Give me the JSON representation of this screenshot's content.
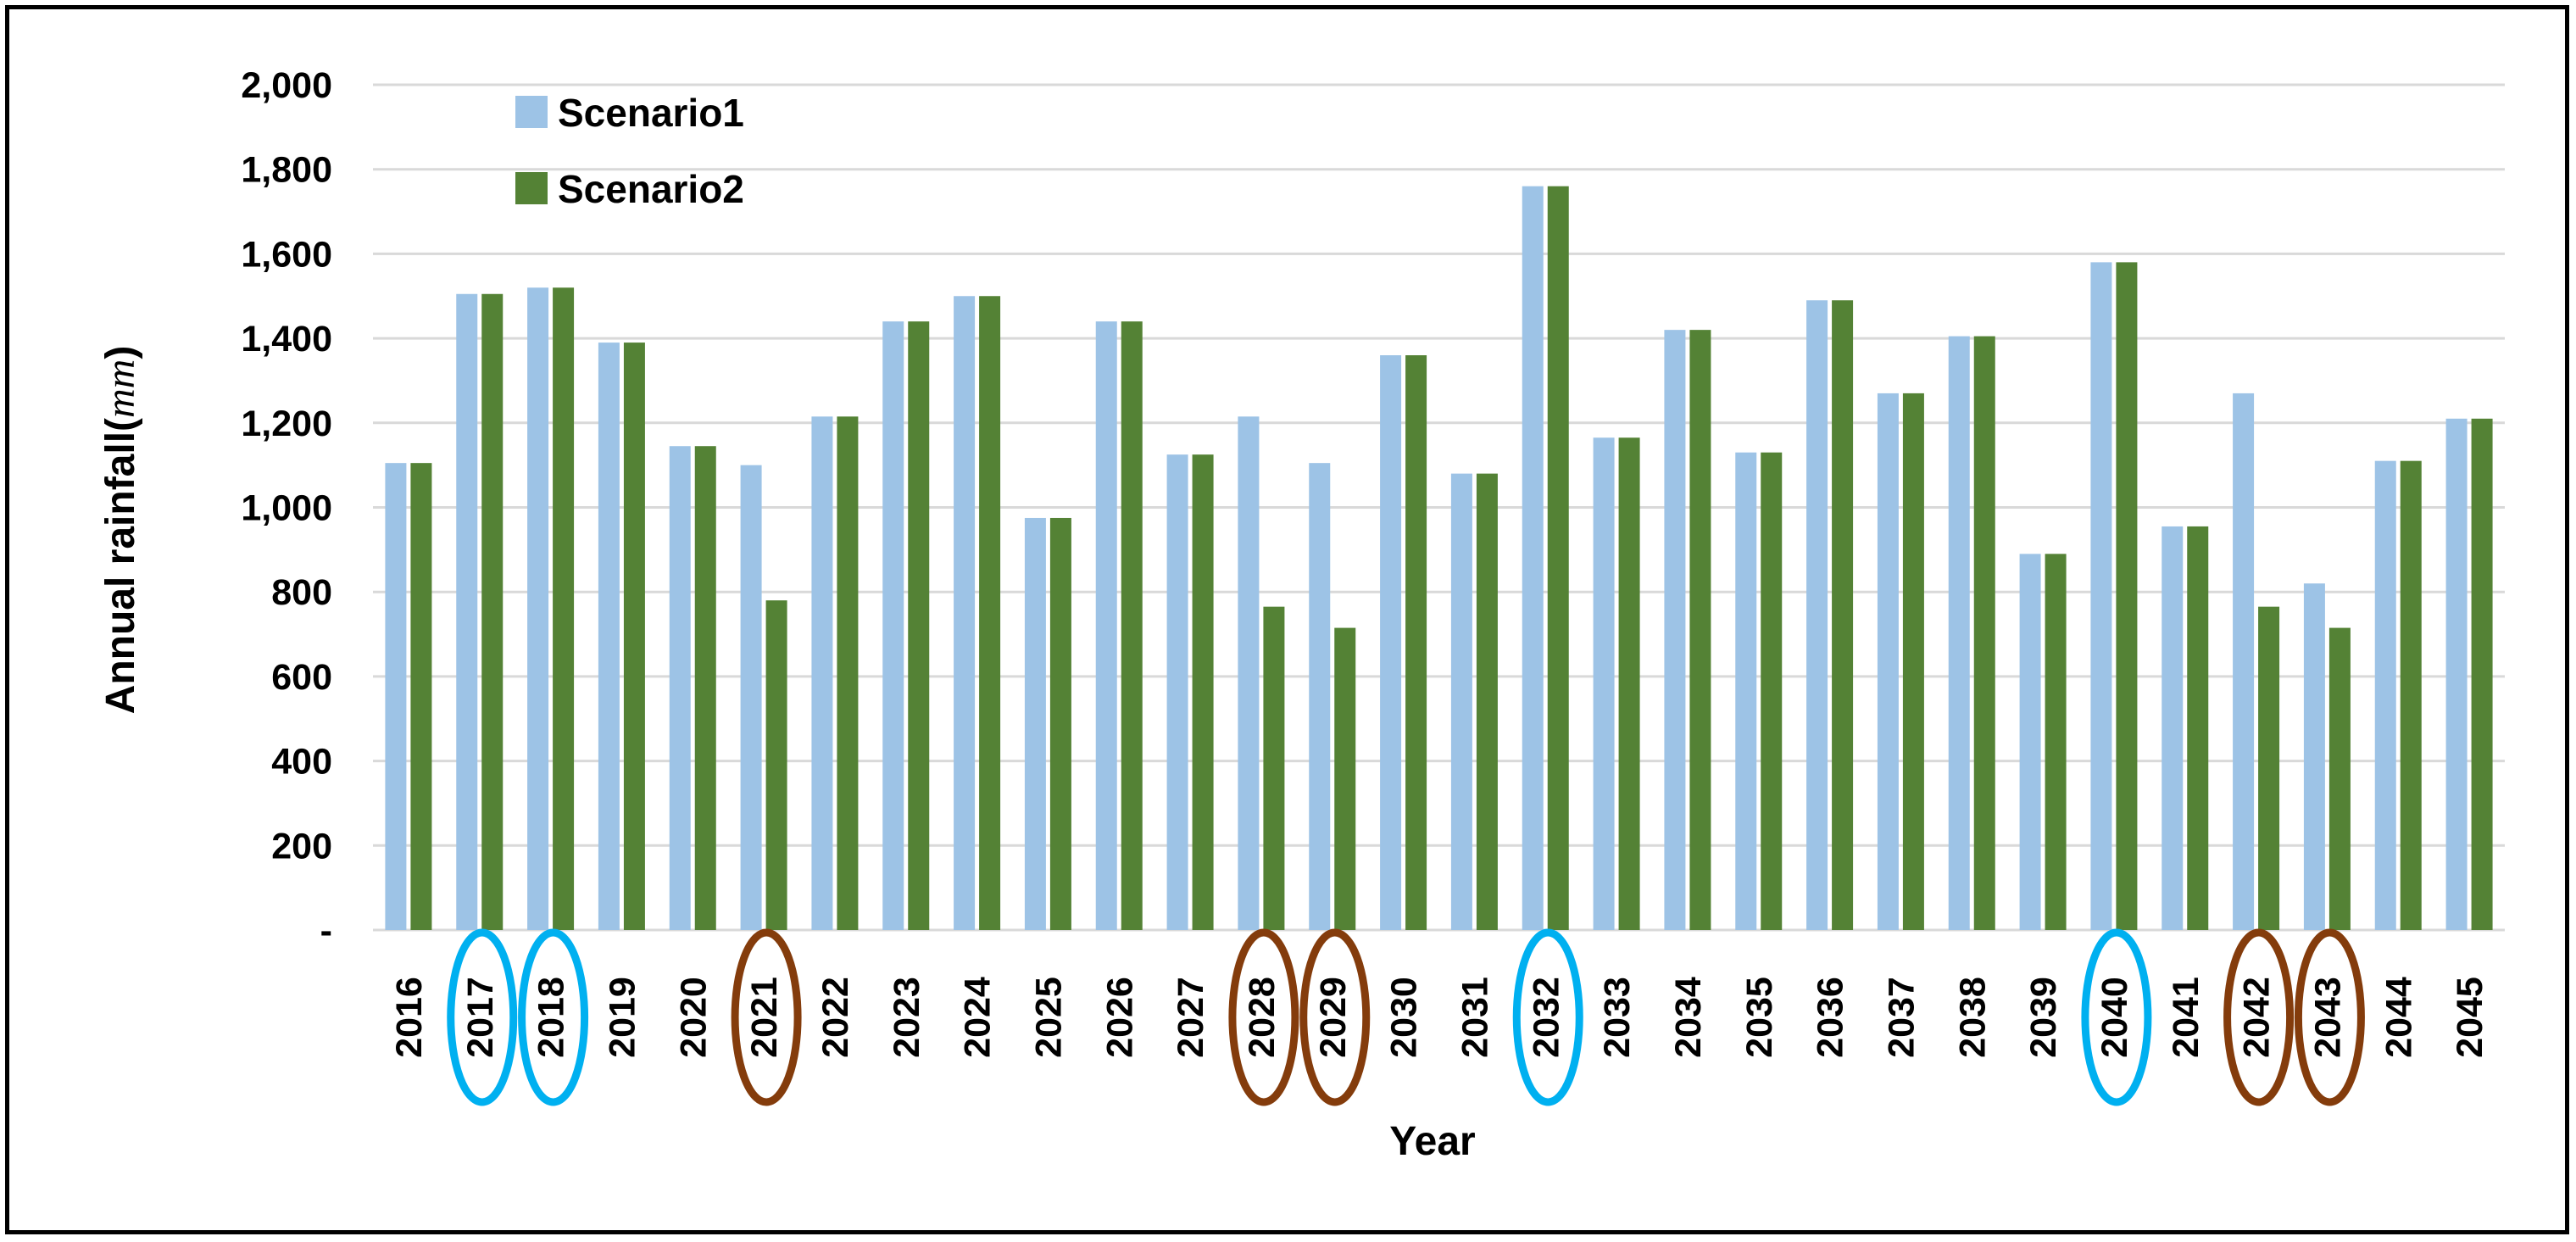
{
  "chart_data": {
    "type": "bar",
    "title": "",
    "xlabel": "Year",
    "ylabel_text": "Annual rainfall",
    "ylabel_unit": "mm",
    "ylim": [
      0,
      2000
    ],
    "yticks": [
      0,
      200,
      400,
      600,
      800,
      1000,
      1200,
      1400,
      1600,
      1800,
      2000
    ],
    "ytick_labels": [
      "-",
      "200",
      "400",
      "600",
      "800",
      "1,000",
      "1,200",
      "1,400",
      "1,600",
      "1,800",
      "2,000"
    ],
    "grid": true,
    "legend_position": "top-left",
    "categories": [
      "2016",
      "2017",
      "2018",
      "2019",
      "2020",
      "2021",
      "2022",
      "2023",
      "2024",
      "2025",
      "2026",
      "2027",
      "2028",
      "2029",
      "2030",
      "2031",
      "2032",
      "2033",
      "2034",
      "2035",
      "2036",
      "2037",
      "2038",
      "2039",
      "2040",
      "2041",
      "2042",
      "2043",
      "2044",
      "2045"
    ],
    "series": [
      {
        "name": "Scenario1",
        "color": "#9dc3e6",
        "values": [
          1105,
          1505,
          1520,
          1390,
          1145,
          1100,
          1215,
          1440,
          1500,
          975,
          1440,
          1125,
          1215,
          1105,
          1360,
          1080,
          1760,
          1165,
          1420,
          1130,
          1490,
          1270,
          1405,
          890,
          1580,
          955,
          1270,
          820,
          1110,
          1210
        ]
      },
      {
        "name": "Scenario2",
        "color": "#548235",
        "values": [
          1105,
          1505,
          1520,
          1390,
          1145,
          780,
          1215,
          1440,
          1500,
          975,
          1440,
          1125,
          765,
          715,
          1360,
          1080,
          1760,
          1165,
          1420,
          1130,
          1490,
          1270,
          1405,
          890,
          1580,
          955,
          765,
          715,
          1110,
          1210
        ]
      }
    ],
    "highlighted_wet_years": [
      "2017",
      "2018",
      "2032",
      "2040"
    ],
    "highlighted_dry_years": [
      "2021",
      "2028",
      "2029",
      "2042",
      "2043"
    ],
    "highlight_colors": {
      "wet": "#00b0f0",
      "dry": "#843c0c"
    }
  }
}
